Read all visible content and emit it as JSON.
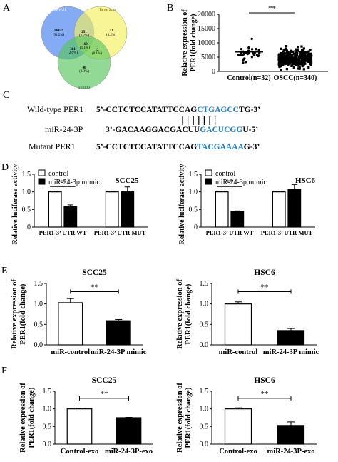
{
  "panels": {
    "A": "A",
    "B": "B",
    "C": "C",
    "D": "D",
    "E": "E",
    "F": "F"
  },
  "venn": {
    "circles": [
      {
        "name": "miRWalk",
        "color": "#5b8ff0"
      },
      {
        "name": "TargetScan",
        "color": "#f5f060"
      },
      {
        "name": "miRDB",
        "color": "#58c45e"
      }
    ],
    "regions": {
      "a_only": {
        "count": "14057",
        "pct": "(94.2%)"
      },
      "ab": {
        "count": "251",
        "pct": "(1.7%)"
      },
      "b_only": {
        "count": "33",
        "pct": "(0.2%)"
      },
      "ac": {
        "count": "381",
        "pct": "(2.6%)"
      },
      "abc": {
        "count": "160",
        "pct": "(1.1%)"
      },
      "bc": {
        "count": "12",
        "pct": "(0.1%)"
      },
      "c_only": {
        "count": "40",
        "pct": "(0.3%)"
      }
    }
  },
  "sequences": {
    "wt_label": "Wild-type PER1",
    "wt_prefix": "5’-CCTCTCCATATTCCAG",
    "wt_site": "CTGAGCC",
    "wt_suffix": "TG-3’",
    "mir_label": "miR-24-3P",
    "mir_prefix": "3’-GACAAGGACGACUU",
    "mir_site": "GACUCGG",
    "mir_suffix": "U-5’",
    "mut_label": "Mutant PER1",
    "mut_prefix": "5’-CCTCTCCATATTCCAG",
    "mut_site": "TACGAAAA",
    "mut_suffix": "G-3’",
    "site_color": "#1e7fc8"
  },
  "chart_data": [
    {
      "panel": "B",
      "type": "scatter",
      "categories": [
        "Control(n=32)",
        "OSCC(n=340)"
      ],
      "ylabel": "Relative expression of PER1(fold change)",
      "ylim": [
        0,
        20000
      ],
      "yticks": [
        "0",
        "5000",
        "10000",
        "15000",
        "20000"
      ],
      "means": [
        6800,
        4600
      ],
      "significance": "**"
    },
    {
      "panel": "D",
      "type": "bar",
      "title": "SCC25",
      "ylabel": "Relative luciferase activity",
      "ylim": [
        0,
        1.5
      ],
      "yticks": [
        "0",
        "0.5",
        "1.0",
        "1.5"
      ],
      "categories": [
        "PER1-3’ UTR WT",
        "PER1-3’ UTR MUT"
      ],
      "series": [
        {
          "name": "control",
          "values": [
            1.0,
            1.0
          ],
          "errors": [
            0.02,
            0.02
          ]
        },
        {
          "name": "miR-24-3p mimic",
          "values": [
            0.58,
            1.0
          ],
          "errors": [
            0.05,
            0.14
          ]
        }
      ],
      "significance": "**"
    },
    {
      "panel": "D",
      "type": "bar",
      "title": "HSC6",
      "ylabel": "Relative luciferase activity",
      "ylim": [
        0,
        1.5
      ],
      "yticks": [
        "0",
        "0.5",
        "1.0",
        "1.5"
      ],
      "categories": [
        "PER1-3’ UTR WT",
        "PER1-3’ UTR MUT"
      ],
      "series": [
        {
          "name": "control",
          "values": [
            1.0,
            1.0
          ],
          "errors": [
            0.02,
            0.02
          ]
        },
        {
          "name": "miR-24-3p mimic",
          "values": [
            0.44,
            1.08
          ],
          "errors": [
            0.02,
            0.13
          ]
        }
      ],
      "significance": "**"
    },
    {
      "panel": "E",
      "type": "bar",
      "title": "SCC25",
      "ylabel": "Relative expression of PER1(fold change)",
      "ylim": [
        0,
        1.5
      ],
      "yticks": [
        "0.0",
        "0.5",
        "1.0",
        "1.5"
      ],
      "categories": [
        "miR-control",
        "miR-24-3P mimic"
      ],
      "values": [
        1.03,
        0.59
      ],
      "errors": [
        0.1,
        0.03
      ],
      "fills": [
        "#ffffff",
        "#000000"
      ],
      "significance": "**"
    },
    {
      "panel": "E",
      "type": "bar",
      "title": "HSC6",
      "ylabel": "Relative expression of PER1(fold change)",
      "ylim": [
        0,
        1.5
      ],
      "yticks": [
        "0.0",
        "0.5",
        "1.0",
        "1.5"
      ],
      "categories": [
        "miR-control",
        "miR-24-3P mimic"
      ],
      "values": [
        1.0,
        0.35
      ],
      "errors": [
        0.05,
        0.05
      ],
      "fills": [
        "#ffffff",
        "#000000"
      ],
      "significance": "**"
    },
    {
      "panel": "F",
      "type": "bar",
      "title": "SCC25",
      "ylabel": "Relative expression of PER1(fold change)",
      "ylim": [
        0,
        1.5
      ],
      "yticks": [
        "0.0",
        "0.5",
        "1.0",
        "1.5"
      ],
      "categories": [
        "Control-exo",
        "miR-24-3P-exo"
      ],
      "values": [
        1.0,
        0.75
      ],
      "errors": [
        0.02,
        0.01
      ],
      "fills": [
        "#ffffff",
        "#000000"
      ],
      "significance": "**"
    },
    {
      "panel": "F",
      "type": "bar",
      "title": "HSC6",
      "ylabel": "Relative expression of PER1(fold change)",
      "ylim": [
        0,
        1.5
      ],
      "yticks": [
        "0.0",
        "0.5",
        "1.0",
        "1.5"
      ],
      "categories": [
        "Control-exo",
        "miR-24-3P-exo"
      ],
      "values": [
        1.0,
        0.53
      ],
      "errors": [
        0.03,
        0.1
      ],
      "fills": [
        "#ffffff",
        "#000000"
      ],
      "significance": "**"
    }
  ]
}
